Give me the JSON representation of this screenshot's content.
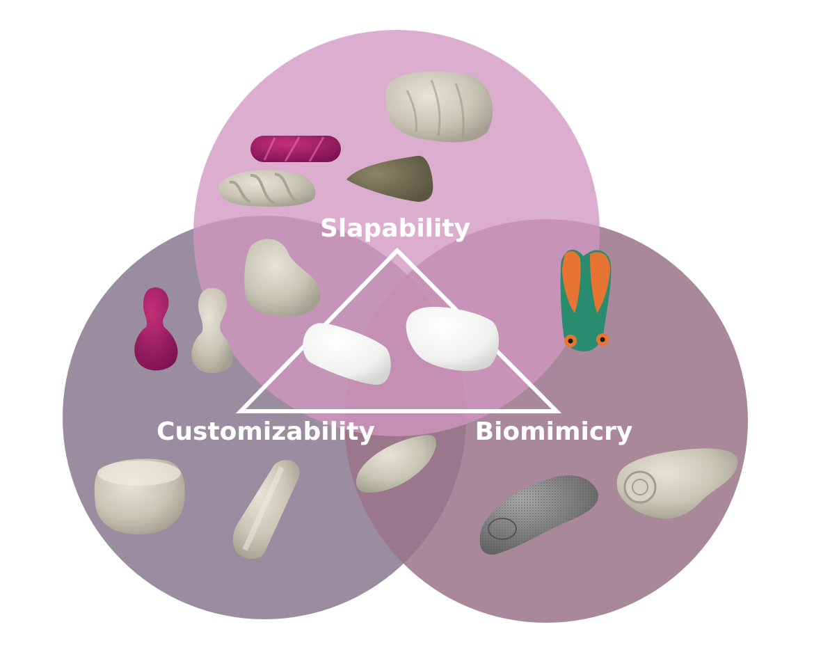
{
  "diagram": {
    "type": "venn",
    "sets": [
      {
        "id": "slapability",
        "label": "Slapability",
        "color": "#d196c0"
      },
      {
        "id": "customizability",
        "label": "Customizability",
        "color": "#8f8196"
      },
      {
        "id": "biomimicry",
        "label": "Biomimicry",
        "color": "#9a7387"
      }
    ],
    "triangle_color": "#ffffff",
    "objects": [
      {
        "name": "clay-blob-icon",
        "set": "slapability"
      },
      {
        "name": "magenta-capsule-icon",
        "set": "slapability"
      },
      {
        "name": "twisted-clay-roll-icon",
        "set": "slapability"
      },
      {
        "name": "clay-cone-icon",
        "set": "slapability"
      },
      {
        "name": "clay-lump-icon",
        "set": "slapability+customizability"
      },
      {
        "name": "magenta-peanut-icon",
        "set": "customizability"
      },
      {
        "name": "clay-peanut-icon",
        "set": "customizability"
      },
      {
        "name": "white-capsule-icon",
        "set": "all"
      },
      {
        "name": "white-rounded-block-icon",
        "set": "all"
      },
      {
        "name": "painted-cicada-icon",
        "set": "biomimicry"
      },
      {
        "name": "clay-puck-icon",
        "set": "customizability"
      },
      {
        "name": "clay-cylinder-icon",
        "set": "customizability"
      },
      {
        "name": "clay-leaf-icon",
        "set": "customizability+biomimicry"
      },
      {
        "name": "textured-fish-icon",
        "set": "biomimicry"
      },
      {
        "name": "clay-creature-icon",
        "set": "biomimicry"
      }
    ]
  }
}
